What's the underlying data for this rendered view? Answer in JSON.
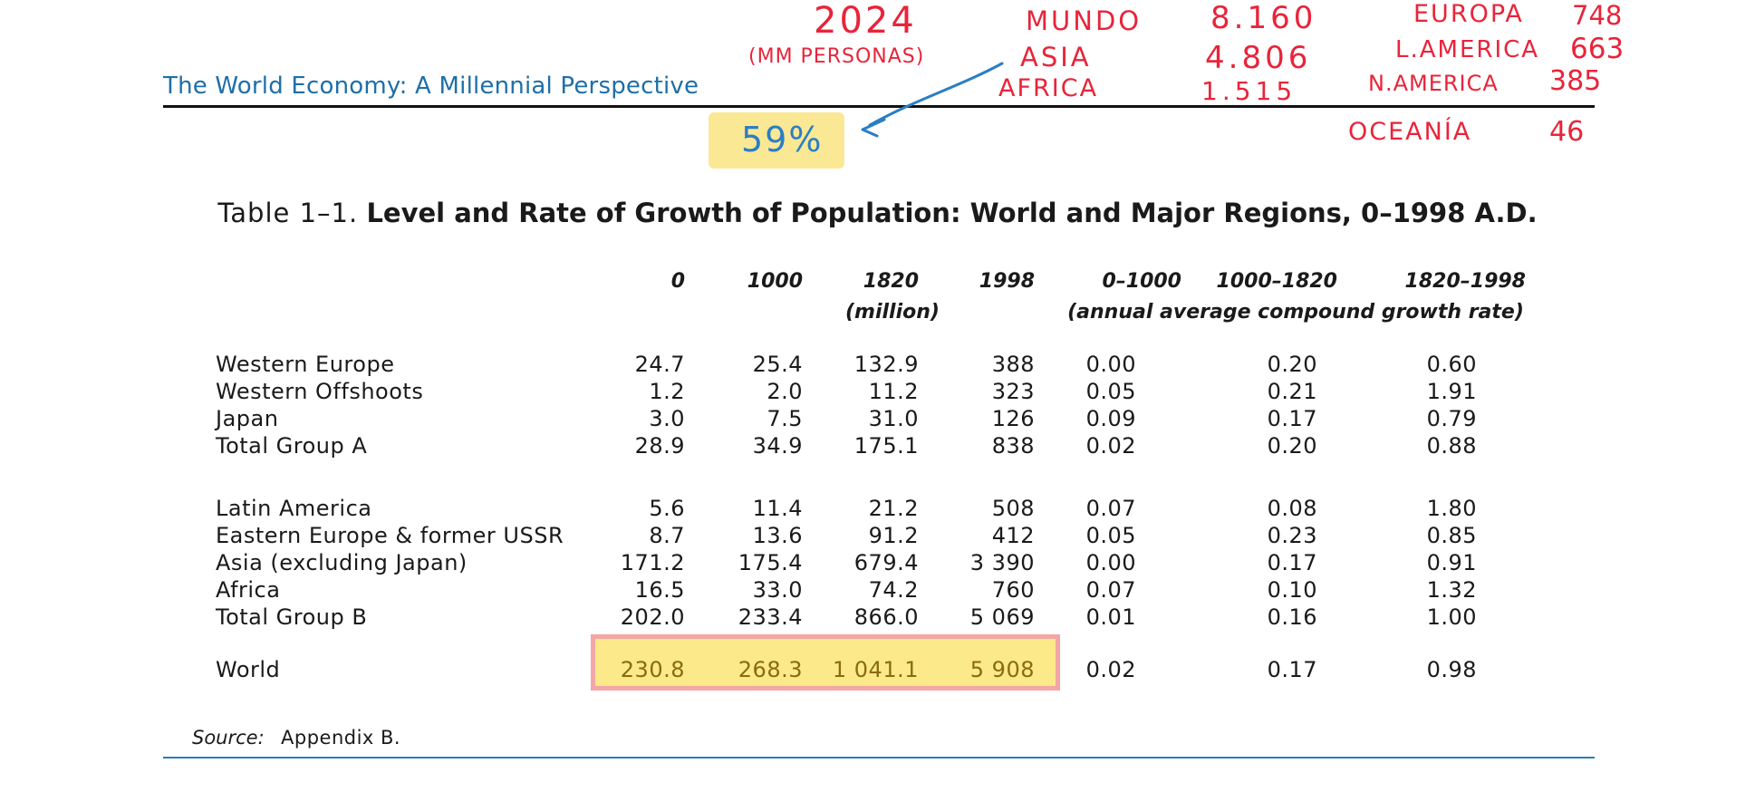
{
  "header": {
    "running_title": "The World Economy: A Millennial Perspective"
  },
  "table": {
    "title_prefix": "Table 1–1.",
    "title_main": "Level and Rate of Growth of Population: World and Major Regions, 0–1998 A.D.",
    "columns": [
      "0",
      "1000",
      "1820",
      "1998",
      "0–1000",
      "1000–1820",
      "1820–1998"
    ],
    "subheads": {
      "levels": "(million)",
      "rates": "(annual average compound growth rate)"
    },
    "rows": [
      {
        "label": "Western Europe",
        "values": [
          "24.7",
          "25.4",
          "132.9",
          "388",
          "0.00",
          "0.20",
          "0.60"
        ]
      },
      {
        "label": "Western Offshoots",
        "values": [
          "1.2",
          "2.0",
          "11.2",
          "323",
          "0.05",
          "0.21",
          "1.91"
        ]
      },
      {
        "label": "Japan",
        "values": [
          "3.0",
          "7.5",
          "31.0",
          "126",
          "0.09",
          "0.17",
          "0.79"
        ]
      },
      {
        "label": "Total Group A",
        "values": [
          "28.9",
          "34.9",
          "175.1",
          "838",
          "0.02",
          "0.20",
          "0.88"
        ]
      },
      {
        "label": "Latin America",
        "values": [
          "5.6",
          "11.4",
          "21.2",
          "508",
          "0.07",
          "0.08",
          "1.80"
        ]
      },
      {
        "label": "Eastern Europe & former USSR",
        "values": [
          "8.7",
          "13.6",
          "91.2",
          "412",
          "0.05",
          "0.23",
          "0.85"
        ]
      },
      {
        "label": "Asia (excluding Japan)",
        "values": [
          "171.2",
          "175.4",
          "679.4",
          "3 390",
          "0.00",
          "0.17",
          "0.91"
        ]
      },
      {
        "label": "Africa",
        "values": [
          "16.5",
          "33.0",
          "74.2",
          "760",
          "0.07",
          "0.10",
          "1.32"
        ]
      },
      {
        "label": "Total Group B",
        "values": [
          "202.0",
          "233.4",
          "866.0",
          "5 069",
          "0.01",
          "0.16",
          "1.00"
        ]
      },
      {
        "label": "World",
        "values": [
          "230.8",
          "268.3",
          "1 041.1",
          "5 908",
          "0.02",
          "0.17",
          "0.98"
        ]
      }
    ],
    "source_label": "Source:",
    "source_value": "Appendix B."
  },
  "annotations": {
    "year": "2024",
    "unit": "(MM PERSONAS)",
    "percent": "59%",
    "colors": {
      "red": "#e8243a",
      "blue": "#2a7fc4",
      "highlight": "#fbe98a"
    },
    "list_left": [
      {
        "name": "MUNDO",
        "value": "8.160"
      },
      {
        "name": "ASIA",
        "value": "4.806"
      },
      {
        "name": "AFRICA",
        "value": "1.515"
      }
    ],
    "list_right": [
      {
        "name": "EUROPA",
        "value": "748"
      },
      {
        "name": "L.AMERICA",
        "value": "663"
      },
      {
        "name": "N.AMERICA",
        "value": "385"
      },
      {
        "name": "OCEANÍA",
        "value": "46"
      }
    ]
  }
}
